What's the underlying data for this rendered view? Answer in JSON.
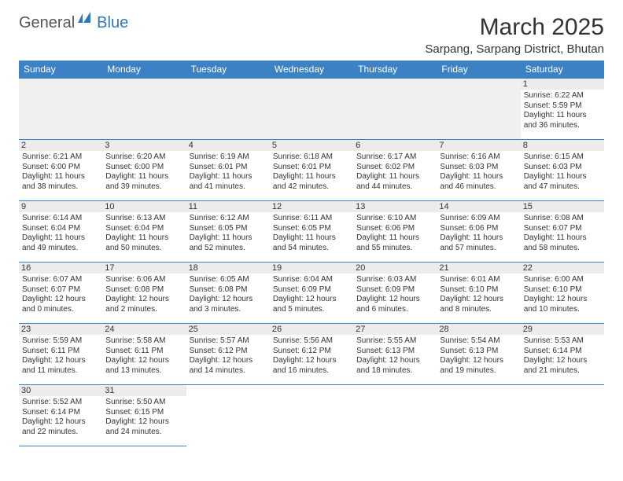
{
  "logo": {
    "part1": "General",
    "part2": "Blue"
  },
  "title": "March 2025",
  "location": "Sarpang, Sarpang District, Bhutan",
  "colors": {
    "header_bg": "#3b81c3",
    "header_text": "#ffffff",
    "border": "#3b81c3",
    "daynum_bg": "#ececec",
    "text": "#333333",
    "blank_bg": "#f0f0f0",
    "logo_gray": "#555555",
    "logo_blue": "#2f77bb"
  },
  "weekdays": [
    "Sunday",
    "Monday",
    "Tuesday",
    "Wednesday",
    "Thursday",
    "Friday",
    "Saturday"
  ],
  "weeks": [
    [
      null,
      null,
      null,
      null,
      null,
      null,
      {
        "n": "1",
        "sr": "Sunrise: 6:22 AM",
        "ss": "Sunset: 5:59 PM",
        "dl1": "Daylight: 11 hours",
        "dl2": "and 36 minutes."
      }
    ],
    [
      {
        "n": "2",
        "sr": "Sunrise: 6:21 AM",
        "ss": "Sunset: 6:00 PM",
        "dl1": "Daylight: 11 hours",
        "dl2": "and 38 minutes."
      },
      {
        "n": "3",
        "sr": "Sunrise: 6:20 AM",
        "ss": "Sunset: 6:00 PM",
        "dl1": "Daylight: 11 hours",
        "dl2": "and 39 minutes."
      },
      {
        "n": "4",
        "sr": "Sunrise: 6:19 AM",
        "ss": "Sunset: 6:01 PM",
        "dl1": "Daylight: 11 hours",
        "dl2": "and 41 minutes."
      },
      {
        "n": "5",
        "sr": "Sunrise: 6:18 AM",
        "ss": "Sunset: 6:01 PM",
        "dl1": "Daylight: 11 hours",
        "dl2": "and 42 minutes."
      },
      {
        "n": "6",
        "sr": "Sunrise: 6:17 AM",
        "ss": "Sunset: 6:02 PM",
        "dl1": "Daylight: 11 hours",
        "dl2": "and 44 minutes."
      },
      {
        "n": "7",
        "sr": "Sunrise: 6:16 AM",
        "ss": "Sunset: 6:03 PM",
        "dl1": "Daylight: 11 hours",
        "dl2": "and 46 minutes."
      },
      {
        "n": "8",
        "sr": "Sunrise: 6:15 AM",
        "ss": "Sunset: 6:03 PM",
        "dl1": "Daylight: 11 hours",
        "dl2": "and 47 minutes."
      }
    ],
    [
      {
        "n": "9",
        "sr": "Sunrise: 6:14 AM",
        "ss": "Sunset: 6:04 PM",
        "dl1": "Daylight: 11 hours",
        "dl2": "and 49 minutes."
      },
      {
        "n": "10",
        "sr": "Sunrise: 6:13 AM",
        "ss": "Sunset: 6:04 PM",
        "dl1": "Daylight: 11 hours",
        "dl2": "and 50 minutes."
      },
      {
        "n": "11",
        "sr": "Sunrise: 6:12 AM",
        "ss": "Sunset: 6:05 PM",
        "dl1": "Daylight: 11 hours",
        "dl2": "and 52 minutes."
      },
      {
        "n": "12",
        "sr": "Sunrise: 6:11 AM",
        "ss": "Sunset: 6:05 PM",
        "dl1": "Daylight: 11 hours",
        "dl2": "and 54 minutes."
      },
      {
        "n": "13",
        "sr": "Sunrise: 6:10 AM",
        "ss": "Sunset: 6:06 PM",
        "dl1": "Daylight: 11 hours",
        "dl2": "and 55 minutes."
      },
      {
        "n": "14",
        "sr": "Sunrise: 6:09 AM",
        "ss": "Sunset: 6:06 PM",
        "dl1": "Daylight: 11 hours",
        "dl2": "and 57 minutes."
      },
      {
        "n": "15",
        "sr": "Sunrise: 6:08 AM",
        "ss": "Sunset: 6:07 PM",
        "dl1": "Daylight: 11 hours",
        "dl2": "and 58 minutes."
      }
    ],
    [
      {
        "n": "16",
        "sr": "Sunrise: 6:07 AM",
        "ss": "Sunset: 6:07 PM",
        "dl1": "Daylight: 12 hours",
        "dl2": "and 0 minutes."
      },
      {
        "n": "17",
        "sr": "Sunrise: 6:06 AM",
        "ss": "Sunset: 6:08 PM",
        "dl1": "Daylight: 12 hours",
        "dl2": "and 2 minutes."
      },
      {
        "n": "18",
        "sr": "Sunrise: 6:05 AM",
        "ss": "Sunset: 6:08 PM",
        "dl1": "Daylight: 12 hours",
        "dl2": "and 3 minutes."
      },
      {
        "n": "19",
        "sr": "Sunrise: 6:04 AM",
        "ss": "Sunset: 6:09 PM",
        "dl1": "Daylight: 12 hours",
        "dl2": "and 5 minutes."
      },
      {
        "n": "20",
        "sr": "Sunrise: 6:03 AM",
        "ss": "Sunset: 6:09 PM",
        "dl1": "Daylight: 12 hours",
        "dl2": "and 6 minutes."
      },
      {
        "n": "21",
        "sr": "Sunrise: 6:01 AM",
        "ss": "Sunset: 6:10 PM",
        "dl1": "Daylight: 12 hours",
        "dl2": "and 8 minutes."
      },
      {
        "n": "22",
        "sr": "Sunrise: 6:00 AM",
        "ss": "Sunset: 6:10 PM",
        "dl1": "Daylight: 12 hours",
        "dl2": "and 10 minutes."
      }
    ],
    [
      {
        "n": "23",
        "sr": "Sunrise: 5:59 AM",
        "ss": "Sunset: 6:11 PM",
        "dl1": "Daylight: 12 hours",
        "dl2": "and 11 minutes."
      },
      {
        "n": "24",
        "sr": "Sunrise: 5:58 AM",
        "ss": "Sunset: 6:11 PM",
        "dl1": "Daylight: 12 hours",
        "dl2": "and 13 minutes."
      },
      {
        "n": "25",
        "sr": "Sunrise: 5:57 AM",
        "ss": "Sunset: 6:12 PM",
        "dl1": "Daylight: 12 hours",
        "dl2": "and 14 minutes."
      },
      {
        "n": "26",
        "sr": "Sunrise: 5:56 AM",
        "ss": "Sunset: 6:12 PM",
        "dl1": "Daylight: 12 hours",
        "dl2": "and 16 minutes."
      },
      {
        "n": "27",
        "sr": "Sunrise: 5:55 AM",
        "ss": "Sunset: 6:13 PM",
        "dl1": "Daylight: 12 hours",
        "dl2": "and 18 minutes."
      },
      {
        "n": "28",
        "sr": "Sunrise: 5:54 AM",
        "ss": "Sunset: 6:13 PM",
        "dl1": "Daylight: 12 hours",
        "dl2": "and 19 minutes."
      },
      {
        "n": "29",
        "sr": "Sunrise: 5:53 AM",
        "ss": "Sunset: 6:14 PM",
        "dl1": "Daylight: 12 hours",
        "dl2": "and 21 minutes."
      }
    ],
    [
      {
        "n": "30",
        "sr": "Sunrise: 5:52 AM",
        "ss": "Sunset: 6:14 PM",
        "dl1": "Daylight: 12 hours",
        "dl2": "and 22 minutes."
      },
      {
        "n": "31",
        "sr": "Sunrise: 5:50 AM",
        "ss": "Sunset: 6:15 PM",
        "dl1": "Daylight: 12 hours",
        "dl2": "and 24 minutes."
      },
      null,
      null,
      null,
      null,
      null
    ]
  ]
}
